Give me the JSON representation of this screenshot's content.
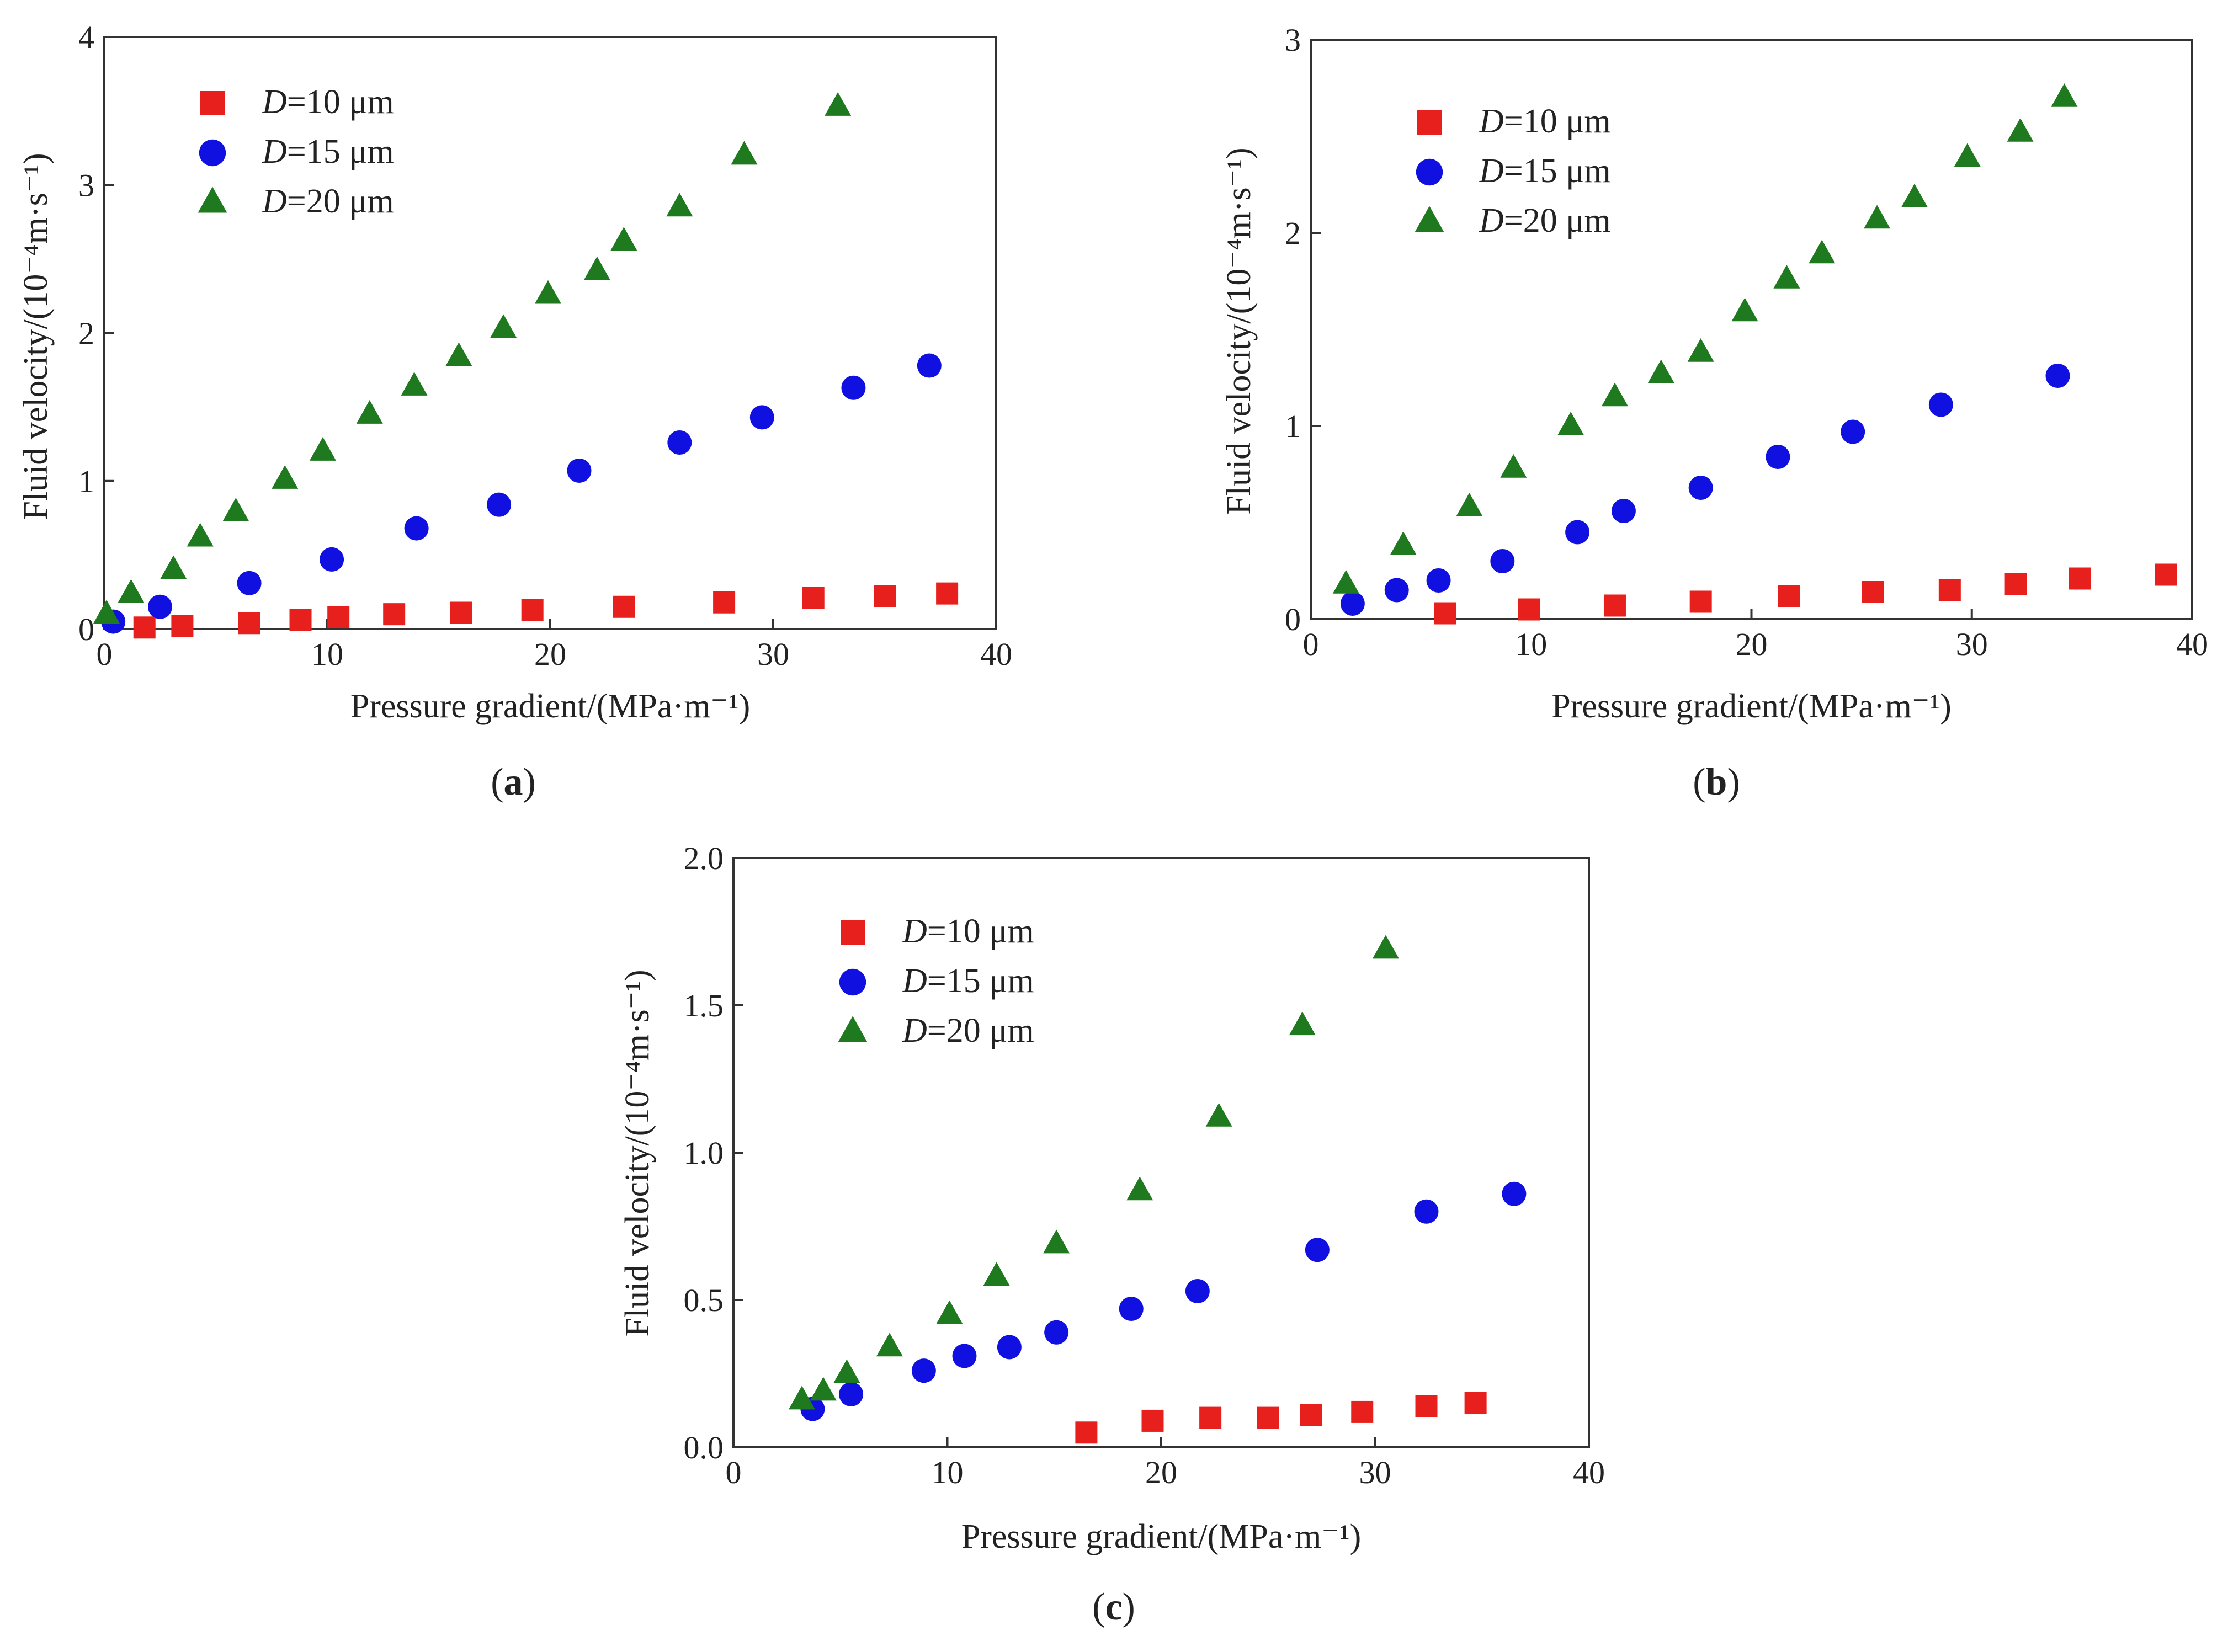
{
  "figure": {
    "panels": [
      {
        "label": "(a)",
        "label_letter": "a"
      },
      {
        "label": "(b)",
        "label_letter": "b"
      },
      {
        "label": "(c)",
        "label_letter": "c"
      }
    ]
  },
  "colors": {
    "d10": "#e8201d",
    "d15": "#1010e0",
    "d20": "#1f7a1f",
    "axis": "#333333"
  },
  "chart_data": [
    {
      "type": "scatter",
      "panel": "(a)",
      "xlabel": "Pressure gradient/(MPa·m⁻¹)",
      "ylabel": "Fluid velocity/(10⁻⁴m·s⁻¹)",
      "xlim": [
        0,
        40
      ],
      "ylim": [
        0,
        4
      ],
      "xticks": [
        0,
        10,
        20,
        30,
        40
      ],
      "yticks": [
        0,
        1,
        2,
        3,
        4
      ],
      "ytick_labels": [
        "0",
        "1",
        "2",
        "3",
        "4"
      ],
      "legend_position": "top-left",
      "series": [
        {
          "name": "D=10 μm",
          "prefix": "D",
          "suffix": "=10 μm",
          "marker": "square",
          "color": "#e8201d",
          "x": [
            1.8,
            3.5,
            6.5,
            8.8,
            10.5,
            13,
            16,
            19.2,
            23.3,
            27.8,
            31.8,
            35,
            37.8
          ],
          "y": [
            0.01,
            0.02,
            0.04,
            0.06,
            0.08,
            0.1,
            0.11,
            0.13,
            0.15,
            0.18,
            0.21,
            0.22,
            0.24
          ]
        },
        {
          "name": "D=15 μm",
          "prefix": "D",
          "suffix": "=15 μm",
          "marker": "circle",
          "color": "#1010e0",
          "x": [
            0.4,
            2.5,
            6.5,
            10.2,
            14,
            17.7,
            21.3,
            25.8,
            29.5,
            33.6,
            37
          ],
          "y": [
            0.05,
            0.15,
            0.31,
            0.47,
            0.68,
            0.84,
            1.07,
            1.26,
            1.43,
            1.63,
            1.78
          ]
        },
        {
          "name": "D=20 μm",
          "prefix": "D",
          "suffix": "=20 μm",
          "marker": "triangle",
          "color": "#1f7a1f",
          "x": [
            0.1,
            1.2,
            3.1,
            4.3,
            5.9,
            8.1,
            9.8,
            11.9,
            13.9,
            15.9,
            17.9,
            19.9,
            22.1,
            23.3,
            25.8,
            28.7,
            32.9
          ],
          "y": [
            0.1,
            0.24,
            0.4,
            0.62,
            0.79,
            1.01,
            1.2,
            1.45,
            1.64,
            1.84,
            2.03,
            2.26,
            2.42,
            2.62,
            2.85,
            3.2,
            3.53
          ]
        }
      ]
    },
    {
      "type": "scatter",
      "panel": "(b)",
      "xlabel": "Pressure gradient/(MPa·m⁻¹)",
      "ylabel": "Fluid velocity/(10⁻⁴m·s⁻¹)",
      "xlim": [
        0,
        40
      ],
      "ylim": [
        0,
        3
      ],
      "xticks": [
        0,
        10,
        20,
        30,
        40
      ],
      "yticks": [
        0,
        1,
        2,
        3
      ],
      "ytick_labels": [
        "0",
        "1",
        "2",
        "3"
      ],
      "legend_position": "top-left",
      "series": [
        {
          "name": "D=10 μm",
          "prefix": "D",
          "suffix": "=10 μm",
          "marker": "square",
          "color": "#e8201d",
          "x": [
            6.1,
            9.9,
            13.8,
            17.7,
            21.7,
            25.5,
            29,
            32,
            34.9,
            38.8
          ],
          "y": [
            0.03,
            0.05,
            0.07,
            0.09,
            0.12,
            0.14,
            0.15,
            0.18,
            0.21,
            0.23
          ]
        },
        {
          "name": "D=15 μm",
          "prefix": "D",
          "suffix": "=15 μm",
          "marker": "circle",
          "color": "#1010e0",
          "x": [
            1.9,
            3.9,
            5.8,
            8.7,
            12.1,
            14.2,
            17.7,
            21.2,
            24.6,
            28.6,
            33.9
          ],
          "y": [
            0.08,
            0.15,
            0.2,
            0.3,
            0.45,
            0.56,
            0.68,
            0.84,
            0.97,
            1.11,
            1.26
          ]
        },
        {
          "name": "D=20 μm",
          "prefix": "D",
          "suffix": "=20 μm",
          "marker": "triangle",
          "color": "#1f7a1f",
          "x": [
            1.6,
            4.2,
            7.2,
            9.2,
            11.8,
            13.8,
            15.9,
            17.7,
            19.7,
            21.6,
            23.2,
            25.7,
            27.4,
            29.8,
            32.2,
            34.2
          ],
          "y": [
            0.18,
            0.38,
            0.58,
            0.78,
            1.0,
            1.15,
            1.27,
            1.38,
            1.59,
            1.76,
            1.89,
            2.07,
            2.18,
            2.39,
            2.52,
            2.7
          ]
        }
      ]
    },
    {
      "type": "scatter",
      "panel": "(c)",
      "xlabel": "Pressure gradient/(MPa·m⁻¹)",
      "ylabel": "Fluid velocity/(10⁻⁴m·s⁻¹)",
      "xlim": [
        0,
        40
      ],
      "ylim": [
        0,
        2
      ],
      "xticks": [
        0,
        10,
        20,
        30,
        40
      ],
      "yticks": [
        0,
        0.5,
        1.0,
        1.5,
        2.0
      ],
      "ytick_labels": [
        "0.0",
        "0.5",
        "1.0",
        "1.5",
        "2.0"
      ],
      "legend_position": "top-left",
      "series": [
        {
          "name": "D=10 μm",
          "prefix": "D",
          "suffix": "=10 μm",
          "marker": "square",
          "color": "#e8201d",
          "x": [
            16.5,
            19.6,
            22.3,
            25,
            27,
            29.4,
            32.4,
            34.7
          ],
          "y": [
            0.05,
            0.09,
            0.1,
            0.1,
            0.11,
            0.12,
            0.14,
            0.15
          ]
        },
        {
          "name": "D=15 μm",
          "prefix": "D",
          "suffix": "=15 μm",
          "marker": "circle",
          "color": "#1010e0",
          "x": [
            3.7,
            5.5,
            8.9,
            10.8,
            12.9,
            15.1,
            18.6,
            21.7,
            27.3,
            32.4,
            36.5
          ],
          "y": [
            0.13,
            0.18,
            0.26,
            0.31,
            0.34,
            0.39,
            0.47,
            0.53,
            0.67,
            0.8,
            0.86
          ]
        },
        {
          "name": "D=20 μm",
          "prefix": "D",
          "suffix": "=20 μm",
          "marker": "triangle",
          "color": "#1f7a1f",
          "x": [
            3.2,
            4.2,
            5.3,
            7.3,
            10.1,
            12.3,
            15.1,
            19,
            22.7,
            26.6,
            30.5
          ],
          "y": [
            0.16,
            0.19,
            0.25,
            0.34,
            0.45,
            0.58,
            0.69,
            0.87,
            1.12,
            1.43,
            1.69
          ]
        }
      ]
    }
  ]
}
